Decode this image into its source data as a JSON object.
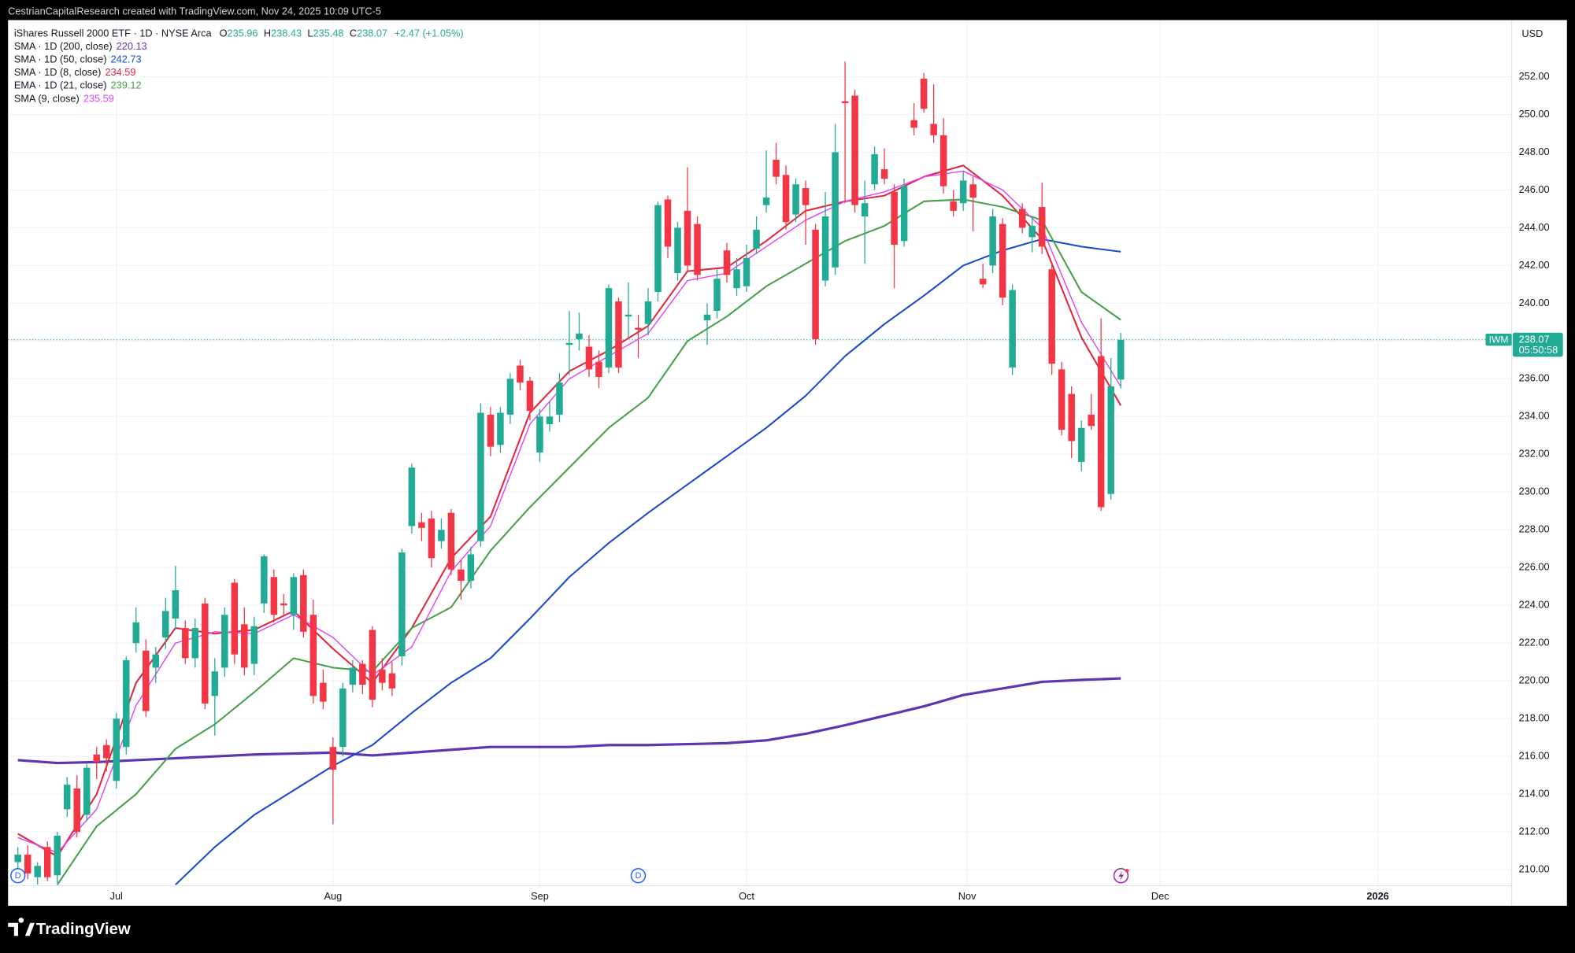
{
  "header": {
    "credit": "CestrianCapitalResearch created with TradingView.com, Nov 24, 2025 10:09 UTC-5"
  },
  "footer": {
    "brand": "TradingView"
  },
  "chart_data": {
    "type": "candlestick",
    "title": "iShares Russell 2000 ETF · 1D · NYSE Arca",
    "symbol": "IWM",
    "currency": "USD",
    "countdown": "05:50:58",
    "ohlc_labels": [
      "O",
      "H",
      "L",
      "C"
    ],
    "change_label": "+2.47 (+1.05%)",
    "up_color": "#22ab94",
    "down_color": "#f23645",
    "grid": true,
    "xlim": [
      -1,
      151.7
    ],
    "xticks": [
      {
        "value": 10,
        "label": "Jul"
      },
      {
        "value": 32,
        "label": "Aug"
      },
      {
        "value": 53,
        "label": "Sep"
      },
      {
        "value": 74,
        "label": "Oct"
      },
      {
        "value": 96.4,
        "label": "Nov"
      },
      {
        "value": 116,
        "label": "Dec"
      },
      {
        "value": 138.1,
        "label": "2026"
      }
    ],
    "ylim": [
      209.15,
      255.0
    ],
    "yticks": [
      {
        "value": 210,
        "label": "210.00"
      },
      {
        "value": 212,
        "label": "212.00"
      },
      {
        "value": 214,
        "label": "214.00"
      },
      {
        "value": 216,
        "label": "216.00"
      },
      {
        "value": 218,
        "label": "218.00"
      },
      {
        "value": 220,
        "label": "220.00"
      },
      {
        "value": 222,
        "label": "222.00"
      },
      {
        "value": 224,
        "label": "224.00"
      },
      {
        "value": 226,
        "label": "226.00"
      },
      {
        "value": 228,
        "label": "228.00"
      },
      {
        "value": 230,
        "label": "230.00"
      },
      {
        "value": 232,
        "label": "232.00"
      },
      {
        "value": 234,
        "label": "234.00"
      },
      {
        "value": 236,
        "label": "236.00"
      },
      {
        "value": 238,
        "label": "238.00"
      },
      {
        "value": 240,
        "label": "240.00"
      },
      {
        "value": 242,
        "label": "242.00"
      },
      {
        "value": 244,
        "label": "244.00"
      },
      {
        "value": 246,
        "label": "246.00"
      },
      {
        "value": 248,
        "label": "248.00"
      },
      {
        "value": 250,
        "label": "250.00"
      },
      {
        "value": 252,
        "label": "252.00"
      }
    ],
    "open": [
      210.4,
      210.8,
      209.6,
      211.2,
      209.7,
      213.2,
      214.3,
      212.9,
      216.1,
      216.6,
      214.7,
      216.5,
      222.0,
      221.6,
      220.7,
      222.3,
      223.3,
      222.8,
      221.2,
      224.1,
      219.2,
      220.7,
      225.2,
      223.0,
      220.9,
      224.1,
      225.5,
      224.1,
      223.5,
      225.6,
      223.5,
      219.9,
      216.5,
      216.5,
      219.8,
      220.9,
      222.7,
      220.6,
      220.4,
      221.3,
      228.2,
      228.4,
      228.6,
      227.4,
      228.9,
      225.9,
      225.3,
      227.4,
      234.1,
      232.5,
      234.1,
      236.7,
      235.9,
      232.1,
      233.6,
      234.1,
      237.8,
      238.1,
      237.7,
      236.9,
      236.6,
      240.1,
      239.3,
      238.7,
      238.9,
      240.6,
      245.5,
      241.6,
      244.9,
      244.2,
      239.1,
      239.6,
      242.8,
      240.8,
      240.9,
      242.9,
      245.2,
      247.6,
      246.8,
      244.7,
      246.1,
      243.9,
      241.2,
      241.9,
      250.7,
      251.0,
      244.6,
      246.3,
      247.1,
      245.9,
      243.3,
      249.7,
      251.9,
      249.5,
      248.9,
      245.4,
      245.3,
      246.3,
      241.3,
      242.0,
      244.2,
      236.6,
      245.0,
      243.5,
      245.1,
      241.8,
      236.5,
      235.2,
      231.6,
      234.1,
      237.2,
      229.9,
      235.96
    ],
    "high": [
      211.2,
      211.3,
      210.4,
      211.5,
      212.0,
      214.9,
      215.0,
      215.6,
      216.5,
      216.9,
      218.3,
      221.3,
      223.9,
      222.2,
      221.8,
      224.4,
      226.1,
      223.2,
      223.3,
      224.4,
      221.2,
      223.9,
      225.4,
      223.9,
      223.4,
      226.7,
      225.9,
      224.6,
      225.7,
      225.9,
      224.3,
      220.6,
      217.0,
      219.9,
      221.1,
      221.1,
      222.9,
      221.2,
      221.0,
      227.0,
      231.5,
      228.9,
      229.0,
      228.6,
      229.1,
      226.4,
      227.1,
      234.7,
      234.5,
      234.5,
      236.3,
      237.0,
      236.1,
      234.4,
      234.8,
      236.3,
      239.6,
      239.5,
      238.3,
      237.5,
      241.0,
      240.3,
      241.1,
      239.4,
      240.8,
      245.4,
      245.7,
      244.3,
      247.2,
      244.6,
      240.0,
      241.8,
      243.2,
      242.4,
      243.1,
      244.6,
      248.1,
      248.5,
      247.3,
      246.6,
      246.5,
      244.2,
      245.9,
      249.5,
      252.8,
      251.3,
      246.5,
      248.3,
      248.2,
      246.3,
      246.6,
      250.6,
      252.2,
      251.6,
      249.8,
      246.0,
      247.0,
      246.7,
      242.1,
      245.0,
      244.5,
      241.0,
      245.3,
      244.6,
      246.4,
      242.2,
      236.9,
      235.6,
      233.8,
      235.2,
      239.2,
      237.1,
      238.43
    ],
    "low": [
      209.9,
      209.5,
      209.2,
      209.4,
      209.3,
      212.8,
      211.7,
      212.6,
      214.8,
      215.2,
      214.3,
      216.1,
      221.5,
      218.1,
      219.9,
      221.7,
      222.7,
      220.9,
      220.7,
      218.5,
      217.1,
      220.2,
      220.9,
      220.3,
      220.3,
      223.6,
      223.1,
      223.5,
      222.7,
      222.3,
      218.8,
      218.5,
      212.4,
      216.0,
      219.4,
      219.3,
      218.6,
      219.5,
      219.2,
      220.8,
      227.8,
      227.4,
      226.0,
      227.0,
      225.6,
      224.3,
      224.9,
      227.1,
      231.9,
      232.1,
      233.6,
      235.4,
      233.8,
      231.6,
      233.2,
      233.7,
      236.2,
      237.5,
      236.1,
      235.5,
      236.3,
      236.3,
      238.2,
      237.1,
      238.3,
      240.1,
      242.4,
      241.2,
      241.7,
      241.2,
      237.8,
      239.2,
      241.1,
      240.4,
      240.6,
      242.6,
      244.8,
      246.3,
      243.9,
      244.3,
      243.1,
      237.8,
      240.9,
      241.5,
      245.3,
      244.8,
      242.1,
      246.0,
      246.3,
      240.8,
      243.0,
      248.9,
      250.1,
      248.5,
      245.8,
      244.6,
      244.9,
      243.8,
      240.8,
      241.6,
      239.9,
      236.2,
      243.7,
      242.7,
      242.6,
      236.2,
      233.0,
      231.8,
      231.1,
      233.3,
      229.0,
      229.6,
      235.48
    ],
    "close": [
      210.8,
      209.8,
      210.2,
      209.6,
      211.8,
      214.5,
      212.0,
      215.4,
      215.7,
      215.9,
      218.0,
      221.1,
      223.1,
      218.4,
      221.4,
      223.7,
      224.8,
      221.2,
      222.8,
      218.8,
      220.5,
      223.5,
      221.4,
      220.7,
      222.9,
      226.6,
      223.5,
      224.0,
      225.5,
      222.6,
      219.2,
      218.9,
      215.3,
      219.6,
      220.7,
      219.8,
      219.0,
      219.9,
      219.6,
      226.8,
      231.3,
      228.1,
      226.5,
      228.0,
      225.9,
      225.3,
      226.7,
      234.2,
      232.4,
      234.2,
      236.0,
      235.8,
      234.3,
      234.0,
      234.0,
      235.8,
      237.9,
      238.4,
      236.5,
      236.1,
      240.8,
      236.6,
      239.4,
      238.6,
      240.1,
      245.2,
      243.0,
      244.0,
      242.0,
      241.5,
      239.4,
      241.3,
      241.5,
      241.8,
      242.4,
      243.9,
      245.6,
      246.7,
      244.3,
      246.3,
      245.2,
      238.1,
      244.6,
      248.0,
      250.6,
      245.2,
      245.3,
      247.9,
      246.6,
      243.1,
      246.2,
      249.3,
      250.3,
      248.9,
      246.2,
      244.9,
      246.5,
      245.6,
      241.0,
      244.6,
      240.3,
      240.7,
      244.0,
      244.1,
      243.0,
      236.8,
      233.3,
      232.7,
      233.4,
      233.5,
      229.2,
      235.6,
      238.07
    ],
    "series": [
      {
        "name": "SMA · 1D (200, close)",
        "color": "#5e35b1",
        "width": 2.5,
        "x": [
          0,
          4,
          8,
          12,
          16,
          20,
          24,
          28,
          32,
          36,
          40,
          44,
          48,
          52,
          56,
          60,
          64,
          68,
          72,
          76,
          80,
          84,
          88,
          92,
          96,
          100,
          104,
          108,
          112
        ],
        "values": [
          215.8,
          215.65,
          215.7,
          215.8,
          215.9,
          216.0,
          216.1,
          216.15,
          216.2,
          216.05,
          216.2,
          216.35,
          216.5,
          216.5,
          216.5,
          216.6,
          216.6,
          216.65,
          216.7,
          216.85,
          217.2,
          217.65,
          218.15,
          218.65,
          219.25,
          219.6,
          219.95,
          220.05,
          220.13
        ]
      },
      {
        "name": "SMA · 1D (50, close)",
        "color": "#1848cc",
        "width": 1.6,
        "x": [
          16,
          20,
          24,
          28,
          32,
          36,
          40,
          44,
          48,
          52,
          56,
          60,
          64,
          68,
          72,
          76,
          80,
          84,
          88,
          92,
          96,
          100,
          104,
          108,
          112
        ],
        "values": [
          209.2,
          211.2,
          212.9,
          214.2,
          215.5,
          216.6,
          218.3,
          219.9,
          221.2,
          223.3,
          225.5,
          227.3,
          228.9,
          230.4,
          231.9,
          233.4,
          235.1,
          237.2,
          238.9,
          240.4,
          242.0,
          242.8,
          243.4,
          243.0,
          242.73
        ]
      },
      {
        "name": "SMA · 1D (8, close)",
        "color": "#e0263f",
        "width": 1.6,
        "x": [
          0,
          4,
          8,
          12,
          16,
          20,
          24,
          28,
          32,
          36,
          40,
          44,
          48,
          52,
          56,
          60,
          64,
          68,
          72,
          76,
          80,
          84,
          88,
          92,
          96,
          100,
          104,
          108,
          112
        ],
        "values": [
          211.9,
          210.7,
          214.0,
          219.9,
          222.8,
          222.5,
          222.7,
          223.7,
          221.7,
          219.9,
          222.8,
          226.5,
          228.7,
          234.2,
          236.4,
          237.5,
          238.8,
          241.7,
          241.9,
          243.3,
          244.9,
          245.4,
          245.7,
          246.7,
          247.3,
          245.7,
          243.4,
          238.2,
          234.59
        ]
      },
      {
        "name": "EMA · 1D (21, close)",
        "color": "#43a047",
        "width": 1.6,
        "x": [
          4,
          8,
          12,
          16,
          20,
          24,
          28,
          32,
          36,
          40,
          44,
          48,
          52,
          56,
          60,
          64,
          68,
          72,
          76,
          80,
          84,
          88,
          92,
          96,
          100,
          104,
          108,
          112
        ],
        "values": [
          209.2,
          212.3,
          214.0,
          216.4,
          217.7,
          219.4,
          221.2,
          220.7,
          220.5,
          222.8,
          223.9,
          226.9,
          229.2,
          231.3,
          233.4,
          235.0,
          238.0,
          239.3,
          240.9,
          242.1,
          243.3,
          244.1,
          245.4,
          245.5,
          245.1,
          244.4,
          240.6,
          239.12
        ]
      },
      {
        "name": "SMA (9, close)",
        "color": "#e040fb",
        "width": 1.1,
        "x": [
          0,
          4,
          8,
          12,
          16,
          20,
          24,
          28,
          32,
          36,
          40,
          44,
          48,
          52,
          56,
          60,
          64,
          68,
          72,
          76,
          80,
          84,
          88,
          92,
          96,
          100,
          104,
          108,
          112
        ],
        "values": [
          211.7,
          210.9,
          213.2,
          218.7,
          222.0,
          222.6,
          222.5,
          223.5,
          222.3,
          220.3,
          221.8,
          225.8,
          228.2,
          233.6,
          236.0,
          237.2,
          238.4,
          241.2,
          241.6,
          243.0,
          244.4,
          245.4,
          245.9,
          246.7,
          247.0,
          246.0,
          244.0,
          239.0,
          235.59
        ]
      }
    ],
    "events": [
      {
        "label": "D",
        "x": 0
      },
      {
        "label": "D",
        "x": 63
      }
    ]
  }
}
